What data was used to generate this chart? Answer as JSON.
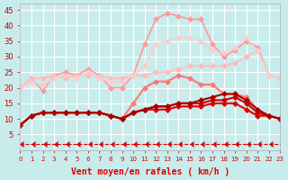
{
  "background_color": "#c8ecec",
  "grid_color": "#ffffff",
  "xlabel": "Vent moyen/en rafales ( km/h )",
  "ylim": [
    0,
    47
  ],
  "xlim": [
    0,
    23
  ],
  "yticks": [
    5,
    10,
    15,
    20,
    25,
    30,
    35,
    40,
    45
  ],
  "xticks": [
    0,
    1,
    2,
    3,
    4,
    5,
    6,
    7,
    8,
    9,
    10,
    11,
    12,
    13,
    14,
    15,
    16,
    17,
    18,
    19,
    20,
    21,
    22,
    23
  ],
  "series": [
    {
      "label": "light_pink_line1",
      "color": "#ff9999",
      "x": [
        0,
        1,
        2,
        3,
        4,
        5,
        6,
        7,
        8,
        9,
        10,
        11,
        12,
        13,
        14,
        15,
        16,
        17,
        18,
        19,
        20,
        21,
        22,
        23
      ],
      "y": [
        20,
        23,
        19,
        24,
        25,
        24,
        26,
        24,
        20,
        20,
        24,
        34,
        42,
        44,
        43,
        42,
        42,
        34,
        30,
        32,
        35,
        33,
        24,
        23
      ],
      "marker": "D",
      "markersize": 3,
      "linewidth": 1.2,
      "linestyle": "-"
    },
    {
      "label": "light_pink_line2",
      "color": "#ffbbbb",
      "x": [
        0,
        1,
        2,
        3,
        4,
        5,
        6,
        7,
        8,
        9,
        10,
        11,
        12,
        13,
        14,
        15,
        16,
        17,
        18,
        19,
        20,
        21,
        22,
        23
      ],
      "y": [
        20,
        23,
        23,
        24,
        23,
        24,
        24,
        24,
        23,
        23,
        24,
        24,
        25,
        25,
        26,
        27,
        27,
        27,
        27,
        28,
        30,
        32,
        24,
        23
      ],
      "marker": "D",
      "markersize": 3,
      "linewidth": 1.2,
      "linestyle": "-"
    },
    {
      "label": "light_pink_line3",
      "color": "#ffcccc",
      "x": [
        0,
        1,
        2,
        3,
        4,
        5,
        6,
        7,
        8,
        9,
        10,
        11,
        12,
        13,
        14,
        15,
        16,
        17,
        18,
        19,
        20,
        21,
        22,
        23
      ],
      "y": [
        20,
        22,
        21,
        23,
        24,
        23,
        25,
        23,
        22,
        22,
        24,
        27,
        34,
        35,
        36,
        36,
        35,
        32,
        31,
        33,
        36,
        32,
        24,
        23
      ],
      "marker": "D",
      "markersize": 3,
      "linewidth": 1.2,
      "linestyle": "-"
    },
    {
      "label": "medium_pink_line",
      "color": "#ff7777",
      "x": [
        0,
        1,
        2,
        3,
        4,
        5,
        6,
        7,
        8,
        9,
        10,
        11,
        12,
        13,
        14,
        15,
        16,
        17,
        18,
        19,
        20,
        21,
        22,
        23
      ],
      "y": [
        8,
        11,
        12,
        12,
        12,
        12,
        12,
        12,
        11,
        10,
        15,
        20,
        22,
        22,
        24,
        23,
        21,
        21,
        18,
        18,
        17,
        13,
        11,
        10
      ],
      "marker": "D",
      "markersize": 3,
      "linewidth": 1.5,
      "linestyle": "-"
    },
    {
      "label": "dark_red_line1",
      "color": "#dd0000",
      "x": [
        0,
        1,
        2,
        3,
        4,
        5,
        6,
        7,
        8,
        9,
        10,
        11,
        12,
        13,
        14,
        15,
        16,
        17,
        18,
        19,
        20,
        21,
        22,
        23
      ],
      "y": [
        8,
        11,
        12,
        12,
        12,
        12,
        12,
        12,
        11,
        10,
        12,
        13,
        13,
        13,
        14,
        14,
        14,
        15,
        15,
        15,
        13,
        11,
        11,
        10
      ],
      "marker": "D",
      "markersize": 3,
      "linewidth": 1.5,
      "linestyle": "-"
    },
    {
      "label": "dark_red_line2",
      "color": "#cc0000",
      "x": [
        0,
        1,
        2,
        3,
        4,
        5,
        6,
        7,
        8,
        9,
        10,
        11,
        12,
        13,
        14,
        15,
        16,
        17,
        18,
        19,
        20,
        21,
        22,
        23
      ],
      "y": [
        8,
        11,
        12,
        12,
        12,
        12,
        12,
        12,
        11,
        10,
        12,
        13,
        14,
        14,
        15,
        15,
        15,
        16,
        16,
        17,
        15,
        12,
        11,
        10
      ],
      "marker": "D",
      "markersize": 3,
      "linewidth": 1.5,
      "linestyle": "-"
    },
    {
      "label": "dark_red_line3",
      "color": "#aa0000",
      "x": [
        0,
        1,
        2,
        3,
        4,
        5,
        6,
        7,
        8,
        9,
        10,
        11,
        12,
        13,
        14,
        15,
        16,
        17,
        18,
        19,
        20,
        21,
        22,
        23
      ],
      "y": [
        8,
        11,
        12,
        12,
        12,
        12,
        12,
        12,
        11,
        10,
        12,
        13,
        14,
        14,
        15,
        15,
        16,
        17,
        18,
        18,
        16,
        13,
        11,
        10
      ],
      "marker": "D",
      "markersize": 3,
      "linewidth": 1.5,
      "linestyle": "-"
    },
    {
      "label": "dashed_bottom",
      "color": "#dd0000",
      "x": [
        0,
        1,
        2,
        3,
        4,
        5,
        6,
        7,
        8,
        9,
        10,
        11,
        12,
        13,
        14,
        15,
        16,
        17,
        18,
        19,
        20,
        21,
        22,
        23
      ],
      "y": [
        2,
        2,
        2,
        2,
        2,
        2,
        2,
        2,
        2,
        2,
        2,
        2,
        2,
        2,
        2,
        2,
        2,
        2,
        2,
        2,
        2,
        2,
        2,
        2
      ],
      "marker": 4,
      "markersize": 4,
      "linewidth": 0.8,
      "linestyle": "--"
    }
  ]
}
